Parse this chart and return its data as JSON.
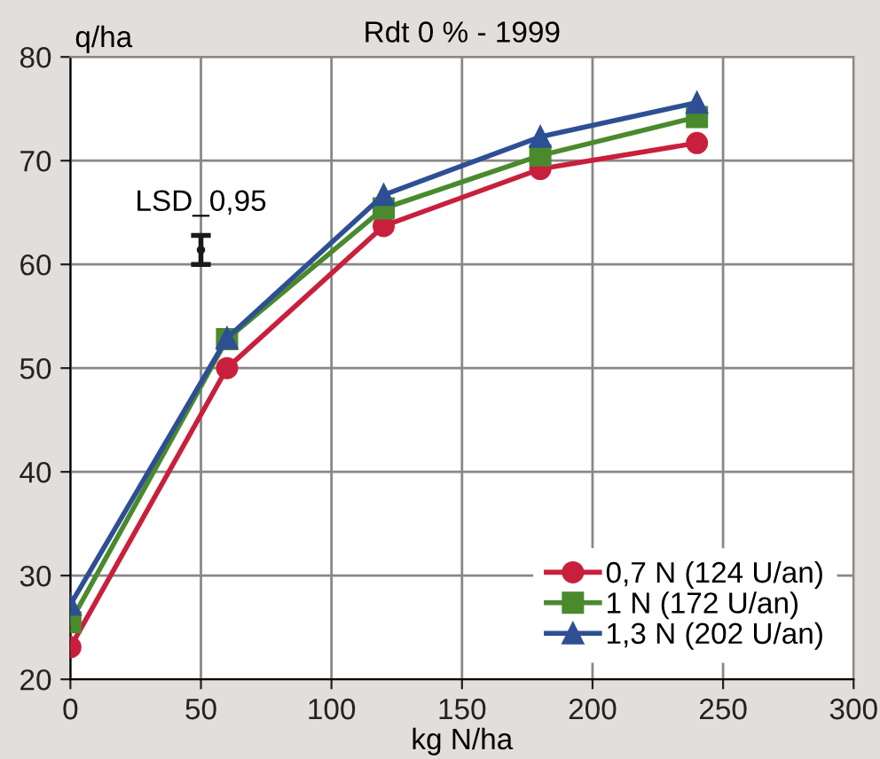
{
  "chart_data": {
    "type": "line",
    "title": "Rdt 0 % - 1999",
    "xlabel": "kg N/ha",
    "ylabel": "q/ha",
    "xlim": [
      0,
      300
    ],
    "xticks": [
      0,
      50,
      100,
      150,
      200,
      250,
      300
    ],
    "ylim": [
      20,
      80
    ],
    "yticks": [
      20,
      30,
      40,
      50,
      60,
      70,
      80
    ],
    "grid": true,
    "legend": "bottom right",
    "annotations": [
      "LSD_0,95"
    ],
    "series": [
      {
        "name": "0,7 N (124 U/an)",
        "color": "#c8203c",
        "marker": "circle",
        "x": [
          0,
          60,
          120,
          180,
          240
        ],
        "values": [
          23.1,
          50,
          63.7,
          69.2,
          71.7
        ]
      },
      {
        "name": "1 N (172 U/an)",
        "color": "#4a8a2c",
        "marker": "square",
        "x": [
          0,
          60,
          120,
          180,
          240
        ],
        "values": [
          25.5,
          52.8,
          65.4,
          70.5,
          74.2
        ]
      },
      {
        "name": "1,3 N (202 U/an)",
        "color": "#2e4f94",
        "marker": "triangle",
        "x": [
          0,
          60,
          120,
          180,
          240
        ],
        "values": [
          27.2,
          52.9,
          66.7,
          72.3,
          75.6
        ]
      },
      {
        "type": "scatter",
        "color": "#1a1a1a",
        "marker": "circle",
        "x": [
          50
        ],
        "values": [
          61.4
        ],
        "errors": [
          [
            60.0,
            62.8
          ]
        ]
      }
    ]
  }
}
